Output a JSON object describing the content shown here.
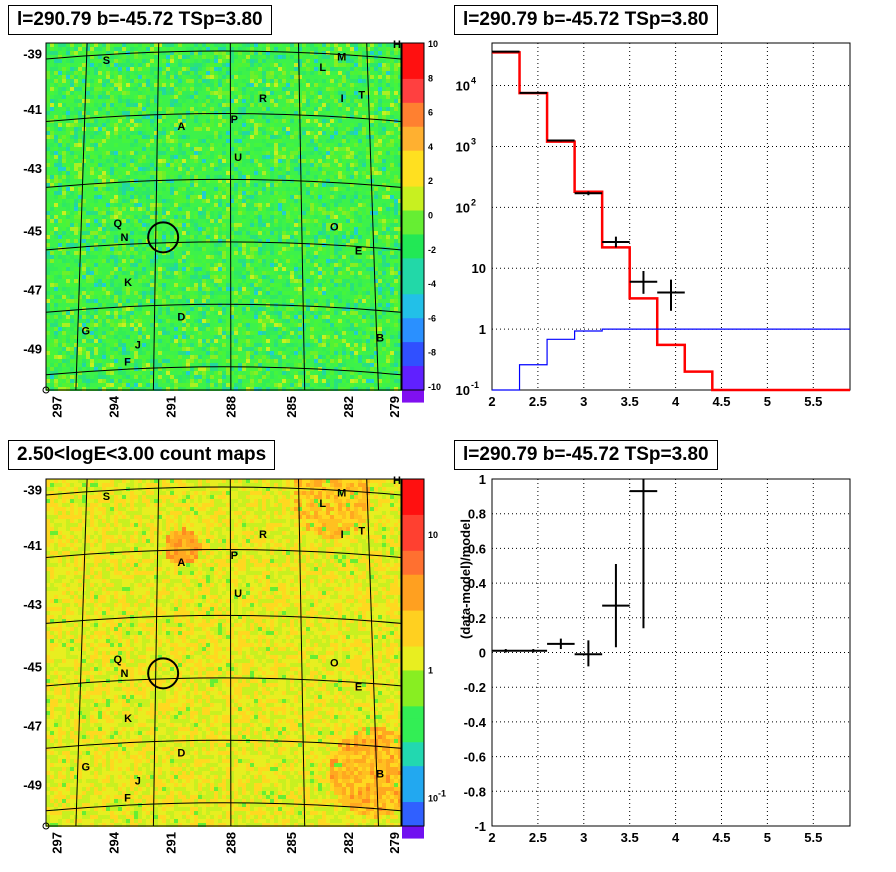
{
  "titles": {
    "map_top": "l=290.79 b=-45.72 TSp=3.80",
    "spec_top": "l=290.79 b=-45.72 TSp=3.80",
    "map_bottom": "2.50<logE<3.00 count maps",
    "resid_bottom": "l=290.79 b=-45.72 TSp=3.80"
  },
  "colors": {
    "data": "#000000",
    "model": "#ff0000",
    "background_model": "#0000ff"
  },
  "maps": {
    "lon_ticks": [
      "297",
      "294",
      "291",
      "288",
      "285",
      "282",
      "279"
    ],
    "lat_ticks": [
      "-39",
      "-41",
      "-43",
      "-45",
      "-47",
      "-49"
    ],
    "source_letters": [
      "S",
      "M",
      "L",
      "T",
      "I",
      "R",
      "A",
      "P",
      "U",
      "O",
      "Q",
      "N",
      "E",
      "K",
      "D",
      "G",
      "J",
      "B",
      "F"
    ],
    "corner_marker": "H",
    "top_palette_ticks": [
      "10",
      "8",
      "6",
      "4",
      "2",
      "0",
      "-2",
      "-4",
      "-6",
      "-8",
      "-10"
    ],
    "bottom_palette_ticks": [
      "10",
      "1",
      "10",
      "-1"
    ]
  },
  "chart_data": [
    {
      "type": "line",
      "panel": "spectrum",
      "title": "l=290.79 b=-45.72 TSp=3.80",
      "xlabel": "",
      "ylabel": "",
      "xlim": [
        2,
        5.9
      ],
      "ylim": [
        0.1,
        50000
      ],
      "yscale": "log",
      "grid": true,
      "x_ticks": [
        "2",
        "2.5",
        "3",
        "3.5",
        "4",
        "4.5",
        "5",
        "5.5"
      ],
      "y_ticks": [
        "10^-1",
        "1",
        "10",
        "10^2",
        "10^3",
        "10^4"
      ],
      "bin_edges": [
        2.0,
        2.3,
        2.6,
        2.9,
        3.2,
        3.5,
        3.8,
        4.1,
        4.4,
        5.9
      ],
      "series": [
        {
          "style": "step",
          "values": [
            35000,
            7500,
            1200,
            180,
            22,
            3.2,
            0.55,
            0.2,
            0.1
          ]
        },
        {
          "style": "step",
          "values": [
            0.1,
            0.26,
            0.68,
            0.93,
            1.0,
            1.0,
            1.0,
            1.0,
            1.0
          ]
        },
        {
          "style": "errorbar",
          "points": [
            {
              "x": 2.15,
              "y": 36000,
              "ylo": 35000,
              "yhi": 37000
            },
            {
              "x": 2.45,
              "y": 7600,
              "ylo": 7400,
              "yhi": 7800
            },
            {
              "x": 2.75,
              "y": 1250,
              "ylo": 1200,
              "yhi": 1300
            },
            {
              "x": 3.05,
              "y": 170,
              "ylo": 158,
              "yhi": 182
            },
            {
              "x": 3.35,
              "y": 27,
              "ylo": 22,
              "yhi": 33
            },
            {
              "x": 3.65,
              "y": 6,
              "ylo": 3.8,
              "yhi": 9
            },
            {
              "x": 3.95,
              "y": 4,
              "ylo": 2,
              "yhi": 6.5
            }
          ]
        }
      ]
    },
    {
      "type": "scatter",
      "panel": "residuals",
      "title": "l=290.79 b=-45.72 TSp=3.80",
      "xlabel": "",
      "ylabel": "(data-model)/model",
      "xlim": [
        2,
        5.9
      ],
      "ylim": [
        -1,
        1
      ],
      "grid": true,
      "x_ticks": [
        "2",
        "2.5",
        "3",
        "3.5",
        "4",
        "4.5",
        "5",
        "5.5"
      ],
      "y_ticks": [
        "-1",
        "-0.8",
        "-0.6",
        "-0.4",
        "-0.2",
        "0",
        "0.2",
        "0.4",
        "0.6",
        "0.8",
        "1"
      ],
      "points": [
        {
          "x": 2.15,
          "y": 0.01,
          "ylo": 0.0,
          "yhi": 0.02
        },
        {
          "x": 2.45,
          "y": 0.01,
          "ylo": 0.0,
          "yhi": 0.02
        },
        {
          "x": 2.75,
          "y": 0.05,
          "ylo": 0.02,
          "yhi": 0.08
        },
        {
          "x": 3.05,
          "y": -0.01,
          "ylo": -0.08,
          "yhi": 0.07
        },
        {
          "x": 3.35,
          "y": 0.27,
          "ylo": 0.03,
          "yhi": 0.51
        },
        {
          "x": 3.65,
          "y": 0.93,
          "ylo": 0.14,
          "yhi": 1.0
        }
      ]
    }
  ]
}
